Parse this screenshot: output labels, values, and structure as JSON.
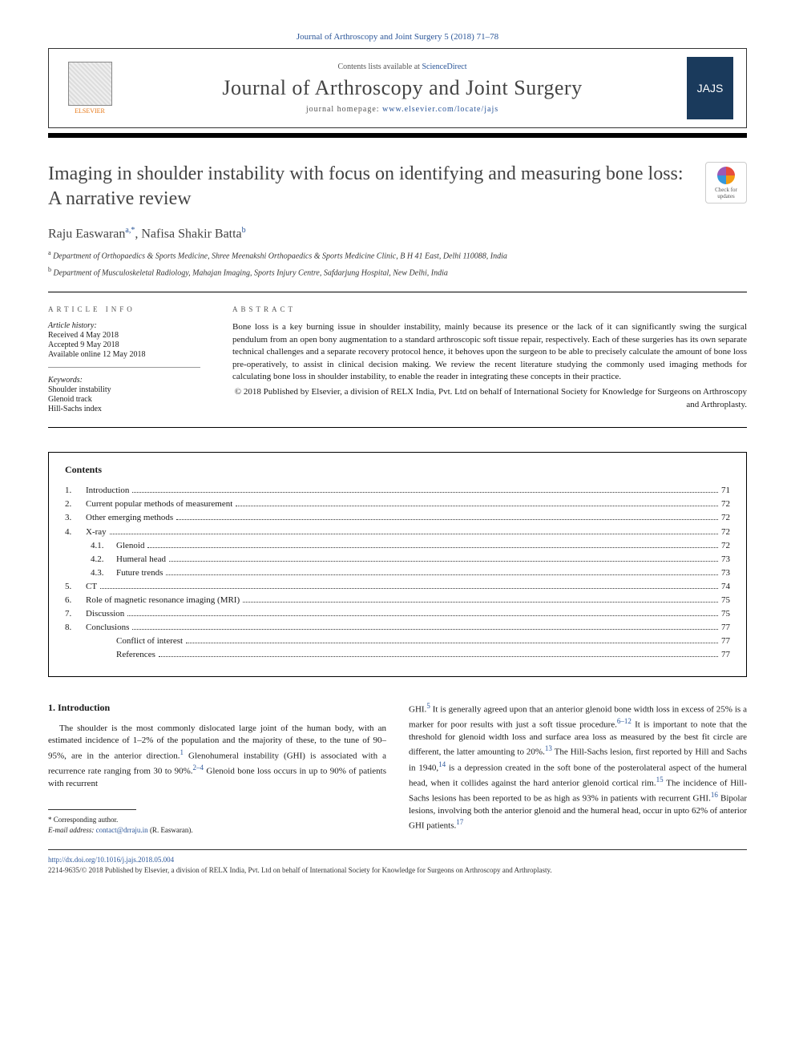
{
  "header": {
    "citation": "Journal of Arthroscopy and Joint Surgery 5 (2018) 71–78",
    "contents_prefix": "Contents lists available at ",
    "contents_link": "ScienceDirect",
    "journal_name": "Journal of Arthroscopy and Joint Surgery",
    "homepage_prefix": "journal homepage: ",
    "homepage_url": "www.elsevier.com/locate/jajs",
    "publisher_logo_label": "ELSEVIER",
    "cover_thumb_label": "JAJS",
    "check_updates_label": "Check for updates"
  },
  "article": {
    "title": "Imaging in shoulder instability with focus on identifying and measuring bone loss: A narrative review",
    "authors_html": "Raju Easwaran<sup>a,*</sup>, Nafisa Shakir Batta<sup>b</sup>",
    "affiliations": [
      {
        "sup": "a",
        "text": "Department of Orthopaedics & Sports Medicine, Shree Meenakshi Orthopaedics & Sports Medicine Clinic, B H 41 East, Delhi 110088, India"
      },
      {
        "sup": "b",
        "text": "Department of Musculoskeletal Radiology, Mahajan Imaging, Sports Injury Centre, Safdarjung Hospital, New Delhi, India"
      }
    ]
  },
  "article_info": {
    "heading": "ARTICLE INFO",
    "history_label": "Article history:",
    "received": "Received 4 May 2018",
    "accepted": "Accepted 9 May 2018",
    "online": "Available online 12 May 2018",
    "keywords_label": "Keywords:",
    "keywords": [
      "Shoulder instability",
      "Glenoid track",
      "Hill-Sachs index"
    ]
  },
  "abstract": {
    "heading": "ABSTRACT",
    "text": "Bone loss is a key burning issue in shoulder instability, mainly because its presence or the lack of it can significantly swing the surgical pendulum from an open bony augmentation to a standard arthroscopic soft tissue repair, respectively. Each of these surgeries has its own separate technical challenges and a separate recovery protocol hence, it behoves upon the surgeon to be able to precisely calculate the amount of bone loss pre-operatively, to assist in clinical decision making. We review the recent literature studying the commonly used imaging methods for calculating bone loss in shoulder instability, to enable the reader in integrating these concepts in their practice.",
    "copyright": "© 2018 Published by Elsevier, a division of RELX India, Pvt. Ltd on behalf of International Society for Knowledge for Surgeons on Arthroscopy and Arthroplasty."
  },
  "contents": {
    "heading": "Contents",
    "items": [
      {
        "num": "1.",
        "label": "Introduction",
        "page": "71",
        "indent": 0
      },
      {
        "num": "2.",
        "label": "Current popular methods of measurement",
        "page": "72",
        "indent": 0
      },
      {
        "num": "3.",
        "label": "Other emerging methods",
        "page": "72",
        "indent": 0
      },
      {
        "num": "4.",
        "label": "X-ray",
        "page": "72",
        "indent": 0
      },
      {
        "num": "4.1.",
        "label": "Glenoid",
        "page": "72",
        "indent": 1
      },
      {
        "num": "4.2.",
        "label": "Humeral head",
        "page": "73",
        "indent": 1
      },
      {
        "num": "4.3.",
        "label": "Future trends",
        "page": "73",
        "indent": 1
      },
      {
        "num": "5.",
        "label": "CT",
        "page": "74",
        "indent": 0
      },
      {
        "num": "6.",
        "label": "Role of magnetic resonance imaging (MRI)",
        "page": "75",
        "indent": 0
      },
      {
        "num": "7.",
        "label": "Discussion",
        "page": "75",
        "indent": 0
      },
      {
        "num": "8.",
        "label": "Conclusions",
        "page": "77",
        "indent": 0
      },
      {
        "num": "",
        "label": "Conflict of interest",
        "page": "77",
        "indent": 1
      },
      {
        "num": "",
        "label": "References",
        "page": "77",
        "indent": 1
      }
    ]
  },
  "body": {
    "section_heading": "1. Introduction",
    "col1": "The shoulder is the most commonly dislocated large joint of the human body, with an estimated incidence of 1–2% of the population and the majority of these, to the tune of 90–95%, are in the anterior direction.<sup class='ref-link'>1</sup> Glenohumeral instability (GHI) is associated with a recurrence rate ranging from 30 to 90%.<sup class='ref-link'>2–4</sup> Glenoid bone loss occurs in up to 90% of patients with recurrent",
    "col2": "GHI.<sup class='ref-link'>5</sup> It is generally agreed upon that an anterior glenoid bone width loss in excess of 25% is a marker for poor results with just a soft tissue procedure.<sup class='ref-link'>6–12</sup> It is important to note that the threshold for glenoid width loss and surface area loss as measured by the best fit circle are different, the latter amounting to 20%.<sup class='ref-link'>13</sup> The Hill-Sachs lesion, first reported by Hill and Sachs in 1940,<sup class='ref-link'>14</sup> is a depression created in the soft bone of the posterolateral aspect of the humeral head, when it collides against the hard anterior glenoid cortical rim.<sup class='ref-link'>15</sup> The incidence of Hill-Sachs lesions has been reported to be as high as 93% in patients with recurrent GHI.<sup class='ref-link'>16</sup> Bipolar lesions, involving both the anterior glenoid and the humeral head, occur in upto 62% of anterior GHI patients.<sup class='ref-link'>17</sup>"
  },
  "footnote": {
    "corresponding": "* Corresponding author.",
    "email_label": "E-mail address: ",
    "email": "contact@drraju.in",
    "email_suffix": " (R. Easwaran)."
  },
  "footer": {
    "doi": "http://dx.doi.org/10.1016/j.jajs.2018.05.004",
    "issn_line": "2214-9635/© 2018 Published by Elsevier, a division of RELX India, Pvt. Ltd on behalf of International Society for Knowledge for Surgeons on Arthroscopy and Arthroplasty."
  },
  "colors": {
    "link": "#2b5699",
    "orange": "#e77817",
    "text": "#1a1a1a"
  }
}
